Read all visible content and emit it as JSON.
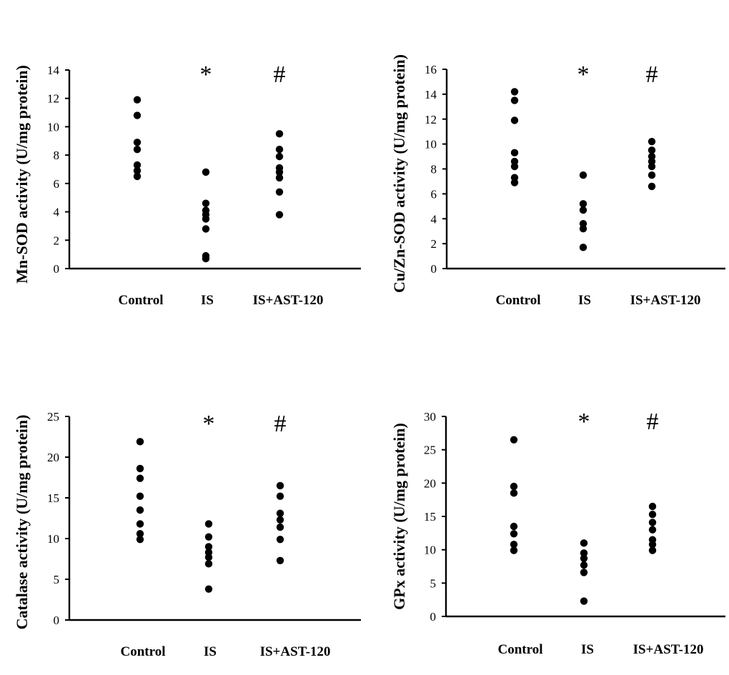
{
  "colors": {
    "points": "#000000",
    "axes": "#000000",
    "background": "#ffffff"
  },
  "chart_data": [
    {
      "type": "scatter",
      "title": "",
      "xlabel": "",
      "ylabel": "Mn-SOD activity (U/mg protein)",
      "ylim": [
        0,
        14
      ],
      "yticks": [
        0,
        2,
        4,
        6,
        8,
        10,
        12,
        14
      ],
      "categories": [
        "Control",
        "IS",
        "IS+AST-120"
      ],
      "annotations": [
        "",
        "*",
        "#"
      ],
      "grid": false,
      "series": [
        {
          "name": "Control",
          "values": [
            11.9,
            10.8,
            8.9,
            8.4,
            7.3,
            6.9,
            6.5
          ]
        },
        {
          "name": "IS",
          "values": [
            6.8,
            4.6,
            4.1,
            3.8,
            3.5,
            2.8,
            0.9,
            0.7
          ]
        },
        {
          "name": "IS+AST-120",
          "values": [
            9.5,
            8.4,
            7.9,
            7.1,
            6.8,
            6.4,
            5.4,
            3.8
          ]
        }
      ]
    },
    {
      "type": "scatter",
      "title": "",
      "xlabel": "",
      "ylabel": "Cu/Zn-SOD activity (U/mg protein)",
      "ylim": [
        0,
        16
      ],
      "yticks": [
        0,
        2,
        4,
        6,
        8,
        10,
        12,
        14,
        16
      ],
      "categories": [
        "Control",
        "IS",
        "IS+AST-120"
      ],
      "annotations": [
        "",
        "*",
        "#"
      ],
      "grid": false,
      "series": [
        {
          "name": "Control",
          "values": [
            14.2,
            13.5,
            11.9,
            9.3,
            8.6,
            8.2,
            7.3,
            6.9
          ]
        },
        {
          "name": "IS",
          "values": [
            7.5,
            5.2,
            4.7,
            3.6,
            3.2,
            1.7
          ]
        },
        {
          "name": "IS+AST-120",
          "values": [
            10.2,
            9.5,
            9.0,
            8.6,
            8.2,
            7.5,
            6.6
          ]
        }
      ]
    },
    {
      "type": "scatter",
      "title": "",
      "xlabel": "",
      "ylabel": "Catalase activity (U/mg protein)",
      "ylim": [
        0,
        25
      ],
      "yticks": [
        0,
        5,
        10,
        15,
        20,
        25
      ],
      "categories": [
        "Control",
        "IS",
        "IS+AST-120"
      ],
      "annotations": [
        "",
        "*",
        "#"
      ],
      "grid": false,
      "series": [
        {
          "name": "Control",
          "values": [
            21.9,
            18.6,
            17.4,
            15.2,
            13.5,
            11.8,
            10.6,
            9.9
          ]
        },
        {
          "name": "IS",
          "values": [
            11.8,
            10.2,
            9.0,
            8.3,
            7.7,
            6.9,
            3.8
          ]
        },
        {
          "name": "IS+AST-120",
          "values": [
            16.5,
            15.2,
            13.1,
            12.3,
            11.4,
            9.9,
            7.3
          ]
        }
      ]
    },
    {
      "type": "scatter",
      "title": "",
      "xlabel": "",
      "ylabel": "GPx activity (U/mg protein)",
      "ylim": [
        0,
        30
      ],
      "yticks": [
        0,
        5,
        10,
        15,
        20,
        25,
        30
      ],
      "categories": [
        "Control",
        "IS",
        "IS+AST-120"
      ],
      "annotations": [
        "",
        "*",
        "#"
      ],
      "grid": false,
      "series": [
        {
          "name": "Control",
          "values": [
            26.5,
            19.5,
            18.5,
            13.5,
            12.4,
            10.8,
            9.9
          ]
        },
        {
          "name": "IS",
          "values": [
            11.0,
            9.5,
            8.7,
            7.7,
            6.6,
            2.3
          ]
        },
        {
          "name": "IS+AST-120",
          "values": [
            16.5,
            15.3,
            14.1,
            13.0,
            11.5,
            10.8,
            9.9
          ]
        }
      ]
    }
  ]
}
